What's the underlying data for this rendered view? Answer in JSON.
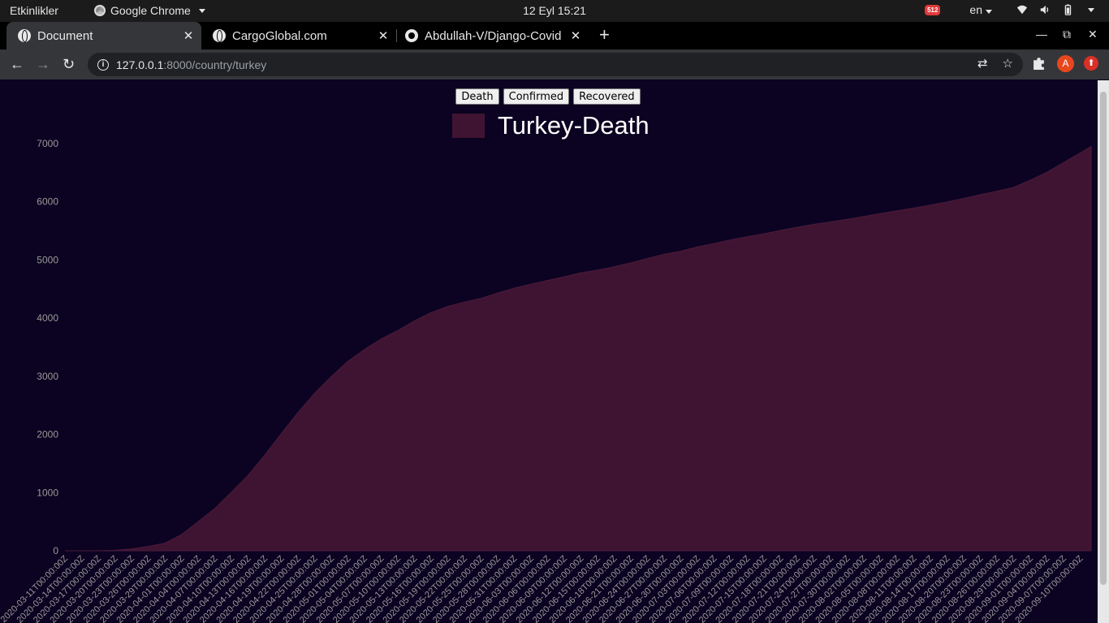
{
  "system_bar": {
    "activities": "Etkinlikler",
    "app_menu": "Google Chrome",
    "clock": "12 Eyl  15:21",
    "notification_badge": "512",
    "language": "en"
  },
  "browser": {
    "tabs": [
      {
        "title": "Document",
        "active": true
      },
      {
        "title": "CargoGlobal.com",
        "active": false
      },
      {
        "title": "Abdullah-V/Django-Covid",
        "active": false
      }
    ],
    "url_host": "127.0.0.1",
    "url_rest": ":8000/country/turkey",
    "profile_initial": "A"
  },
  "page": {
    "buttons": [
      "Death",
      "Confirmed",
      "Recovered"
    ],
    "legend_label": "Turkey-Death",
    "series_color": "#3f1432",
    "background_color": "#0b0321"
  },
  "chart_data": {
    "type": "area",
    "title": "",
    "xlabel": "",
    "ylabel": "",
    "ylim": [
      0,
      7000
    ],
    "yticks": [
      0,
      1000,
      2000,
      3000,
      4000,
      5000,
      6000,
      7000
    ],
    "grid": false,
    "legend": "top-center",
    "series": [
      {
        "name": "Turkey-Death",
        "color": "#3f1432",
        "points": [
          [
            "2020-03-11",
            0
          ],
          [
            "2020-03-17",
            1
          ],
          [
            "2020-03-20",
            9
          ],
          [
            "2020-03-23",
            30
          ],
          [
            "2020-03-26",
            75
          ],
          [
            "2020-03-29",
            131
          ],
          [
            "2020-04-01",
            277
          ],
          [
            "2020-04-04",
            501
          ],
          [
            "2020-04-07",
            725
          ],
          [
            "2020-04-10",
            1006
          ],
          [
            "2020-04-13",
            1296
          ],
          [
            "2020-04-16",
            1643
          ],
          [
            "2020-04-19",
            2017
          ],
          [
            "2020-04-22",
            2376
          ],
          [
            "2020-04-25",
            2706
          ],
          [
            "2020-04-28",
            2992
          ],
          [
            "2020-05-01",
            3258
          ],
          [
            "2020-05-04",
            3461
          ],
          [
            "2020-05-07",
            3641
          ],
          [
            "2020-05-10",
            3786
          ],
          [
            "2020-05-13",
            3952
          ],
          [
            "2020-05-16",
            4096
          ],
          [
            "2020-05-19",
            4199
          ],
          [
            "2020-05-22",
            4276
          ],
          [
            "2020-05-25",
            4340
          ],
          [
            "2020-05-28",
            4431
          ],
          [
            "2020-05-31",
            4515
          ],
          [
            "2020-06-03",
            4585
          ],
          [
            "2020-06-06",
            4648
          ],
          [
            "2020-06-09",
            4711
          ],
          [
            "2020-06-12",
            4778
          ],
          [
            "2020-06-15",
            4825
          ],
          [
            "2020-06-18",
            4882
          ],
          [
            "2020-06-21",
            4950
          ],
          [
            "2020-06-24",
            5025
          ],
          [
            "2020-06-27",
            5097
          ],
          [
            "2020-06-30",
            5150
          ],
          [
            "2020-07-03",
            5225
          ],
          [
            "2020-07-06",
            5282
          ],
          [
            "2020-07-09",
            5344
          ],
          [
            "2020-07-12",
            5400
          ],
          [
            "2020-07-15",
            5450
          ],
          [
            "2020-07-18",
            5508
          ],
          [
            "2020-07-21",
            5563
          ],
          [
            "2020-07-24",
            5613
          ],
          [
            "2020-07-27",
            5655
          ],
          [
            "2020-07-30",
            5697
          ],
          [
            "2020-08-02",
            5747
          ],
          [
            "2020-08-05",
            5798
          ],
          [
            "2020-08-08",
            5844
          ],
          [
            "2020-08-11",
            5891
          ],
          [
            "2020-08-14",
            5941
          ],
          [
            "2020-08-17",
            5996
          ],
          [
            "2020-08-20",
            6058
          ],
          [
            "2020-08-23",
            6121
          ],
          [
            "2020-08-26",
            6182
          ],
          [
            "2020-08-29",
            6245
          ],
          [
            "2020-09-01",
            6370
          ],
          [
            "2020-09-04",
            6507
          ],
          [
            "2020-09-07",
            6673
          ],
          [
            "2020-09-10",
            6837
          ],
          [
            "2020-09-12",
            6951
          ]
        ]
      }
    ],
    "x_tick_labels": [
      "2020-03-11T00:00:00Z",
      "2020-03-14T00:00:00Z",
      "2020-03-17T00:00:00Z",
      "2020-03-20T00:00:00Z",
      "2020-03-23T00:00:00Z",
      "2020-03-26T00:00:00Z",
      "2020-03-29T00:00:00Z",
      "2020-04-01T00:00:00Z",
      "2020-04-04T00:00:00Z",
      "2020-04-07T00:00:00Z",
      "2020-04-10T00:00:00Z",
      "2020-04-13T00:00:00Z",
      "2020-04-16T00:00:00Z",
      "2020-04-19T00:00:00Z",
      "2020-04-22T00:00:00Z",
      "2020-04-25T00:00:00Z",
      "2020-04-28T00:00:00Z",
      "2020-05-01T00:00:00Z",
      "2020-05-04T00:00:00Z",
      "2020-05-07T00:00:00Z",
      "2020-05-10T00:00:00Z",
      "2020-05-13T00:00:00Z",
      "2020-05-16T00:00:00Z",
      "2020-05-19T00:00:00Z",
      "2020-05-22T00:00:00Z",
      "2020-05-25T00:00:00Z",
      "2020-05-28T00:00:00Z",
      "2020-05-31T00:00:00Z",
      "2020-06-03T00:00:00Z",
      "2020-06-06T00:00:00Z",
      "2020-06-09T00:00:00Z",
      "2020-06-12T00:00:00Z",
      "2020-06-15T00:00:00Z",
      "2020-06-18T00:00:00Z",
      "2020-06-21T00:00:00Z",
      "2020-06-24T00:00:00Z",
      "2020-06-27T00:00:00Z",
      "2020-06-30T00:00:00Z",
      "2020-07-03T00:00:00Z",
      "2020-07-06T00:00:00Z",
      "2020-07-09T00:00:00Z",
      "2020-07-12T00:00:00Z",
      "2020-07-15T00:00:00Z",
      "2020-07-18T00:00:00Z",
      "2020-07-21T00:00:00Z",
      "2020-07-24T00:00:00Z",
      "2020-07-27T00:00:00Z",
      "2020-07-30T00:00:00Z",
      "2020-08-02T00:00:00Z",
      "2020-08-05T00:00:00Z",
      "2020-08-08T00:00:00Z",
      "2020-08-11T00:00:00Z",
      "2020-08-14T00:00:00Z",
      "2020-08-17T00:00:00Z",
      "2020-08-20T00:00:00Z",
      "2020-08-23T00:00:00Z",
      "2020-08-26T00:00:00Z",
      "2020-08-29T00:00:00Z",
      "2020-09-01T00:00:00Z",
      "2020-09-04T00:00:00Z",
      "2020-09-07T00:00:00Z",
      "2020-09-10T00:00:00Z"
    ]
  }
}
